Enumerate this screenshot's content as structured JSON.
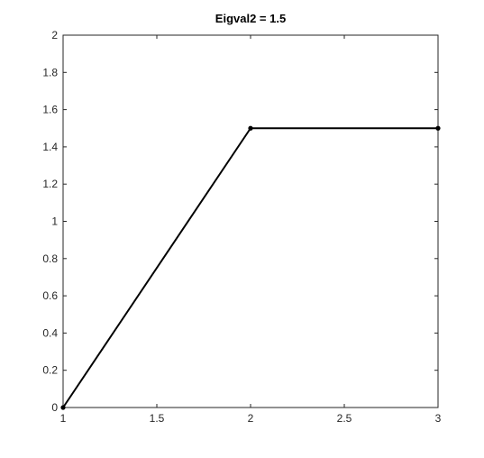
{
  "chart_data": {
    "type": "line",
    "title": "Eigval2 = 1.5",
    "xlabel": "",
    "ylabel": "",
    "xlim": [
      1,
      3
    ],
    "ylim": [
      0,
      2
    ],
    "x_ticks": [
      1,
      1.5,
      2,
      2.5,
      3
    ],
    "x_tick_labels": [
      "1",
      "1.5",
      "2",
      "2.5",
      "3"
    ],
    "y_ticks": [
      0,
      0.2,
      0.4,
      0.6,
      0.8,
      1,
      1.2,
      1.4,
      1.6,
      1.8,
      2
    ],
    "y_tick_labels": [
      "0",
      "0.2",
      "0.4",
      "0.6",
      "0.8",
      "1",
      "1.2",
      "1.4",
      "1.6",
      "1.8",
      "2"
    ],
    "grid": false,
    "series": [
      {
        "x": [
          1,
          2,
          3
        ],
        "y": [
          0,
          1.5,
          1.5
        ],
        "color": "#000000",
        "marker": "dot"
      }
    ]
  }
}
